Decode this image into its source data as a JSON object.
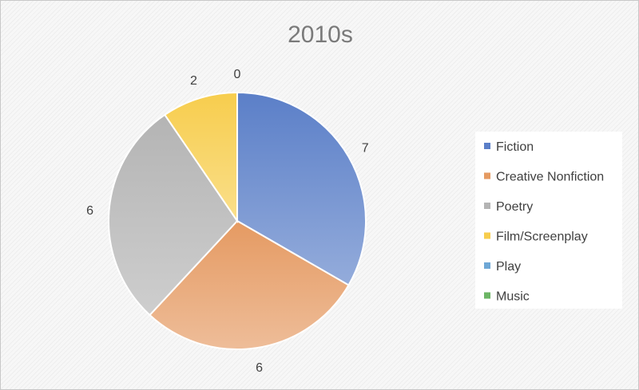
{
  "chart_data": {
    "type": "pie",
    "title": "2010s",
    "categories": [
      "Fiction",
      "Creative Nonfiction",
      "Poetry",
      "Film/Screenplay",
      "Play",
      "Music"
    ],
    "values": [
      7,
      6,
      6,
      2,
      0,
      0
    ],
    "colors": [
      "#5b7fc8",
      "#e59a62",
      "#b4b4b4",
      "#f7cd4d",
      "#6fa8d6",
      "#6cb565"
    ],
    "legend_position": "right",
    "data_labels": "outside-end",
    "start_angle_deg": 0,
    "direction": "clockwise"
  }
}
